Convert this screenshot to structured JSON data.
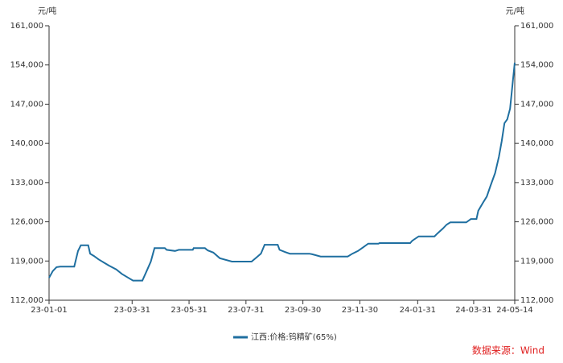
{
  "chart_data": {
    "type": "line",
    "y_unit": "元/吨",
    "y2_unit": "元/吨",
    "x": [
      "23-01-01",
      "23-01-05",
      "23-01-09",
      "23-01-13",
      "23-01-28",
      "23-02-01",
      "23-02-04",
      "23-02-12",
      "23-02-14",
      "23-02-18",
      "23-02-23",
      "23-03-06",
      "23-03-14",
      "23-03-20",
      "23-03-27",
      "23-04-01",
      "23-04-11",
      "23-04-15",
      "23-04-20",
      "23-04-24",
      "23-05-05",
      "23-05-07",
      "23-05-16",
      "23-05-20",
      "23-06-04",
      "23-06-05",
      "23-06-17",
      "23-06-20",
      "23-06-26",
      "23-07-03",
      "23-07-16",
      "23-08-06",
      "23-08-11",
      "23-08-16",
      "23-08-20",
      "23-09-03",
      "23-09-05",
      "23-09-11",
      "23-09-16",
      "23-10-07",
      "23-10-10",
      "23-10-19",
      "23-11-17",
      "23-11-22",
      "23-11-28",
      "23-12-04",
      "23-12-09",
      "23-12-20",
      "23-12-21",
      "24-01-23",
      "24-01-25",
      "24-02-01",
      "24-02-18",
      "24-02-21",
      "24-02-27",
      "24-03-02",
      "24-03-06",
      "24-03-23",
      "24-03-28",
      "24-04-03",
      "24-04-05",
      "24-04-10",
      "24-04-14",
      "24-04-18",
      "24-04-23",
      "24-04-27",
      "24-04-30",
      "24-05-03",
      "24-05-06",
      "24-05-09",
      "24-05-12",
      "24-05-14"
    ],
    "series": [
      {
        "name": "江西:价格:钨精矿(65%)",
        "color": "#1f6fa0",
        "values": [
          116000,
          117200,
          117900,
          118000,
          118000,
          120800,
          121800,
          121800,
          120300,
          119900,
          119300,
          118200,
          117500,
          116700,
          116000,
          115500,
          115500,
          117000,
          118900,
          121300,
          121300,
          121000,
          120800,
          121000,
          121000,
          121300,
          121300,
          120900,
          120500,
          119500,
          118900,
          118900,
          119600,
          120300,
          121900,
          121900,
          121000,
          120600,
          120300,
          120300,
          120200,
          119800,
          119800,
          120300,
          120800,
          121500,
          122100,
          122100,
          122200,
          122200,
          122600,
          123400,
          123400,
          123900,
          124800,
          125500,
          125900,
          125900,
          126500,
          126500,
          128000,
          129400,
          130500,
          132400,
          134700,
          137600,
          140400,
          143600,
          144300,
          146200,
          151200,
          154400
        ]
      }
    ],
    "xlim": [
      "23-01-01",
      "24-05-14"
    ],
    "xticks": [
      "23-01-01",
      "23-03-31",
      "23-05-31",
      "23-07-31",
      "23-09-30",
      "23-11-30",
      "24-01-31",
      "24-03-31",
      "24-05-14"
    ],
    "ylim": [
      112000,
      161000
    ],
    "yticks": [
      {
        "value": 112000,
        "label": "112,000"
      },
      {
        "value": 119000,
        "label": "119,000"
      },
      {
        "value": 126000,
        "label": "126,000"
      },
      {
        "value": 133000,
        "label": "133,000"
      },
      {
        "value": 140000,
        "label": "140,000"
      },
      {
        "value": 147000,
        "label": "147,000"
      },
      {
        "value": 154000,
        "label": "154,000"
      },
      {
        "value": 161000,
        "label": "161,000"
      }
    ],
    "y2lim": [
      112000,
      161000
    ],
    "y2ticks": [
      {
        "value": 112000,
        "label": "112,000"
      },
      {
        "value": 119000,
        "label": "119,000"
      },
      {
        "value": 126000,
        "label": "126,000"
      },
      {
        "value": 133000,
        "label": "133,000"
      },
      {
        "value": 140000,
        "label": "140,000"
      },
      {
        "value": 147000,
        "label": "147,000"
      },
      {
        "value": 154000,
        "label": "154,000"
      },
      {
        "value": 161000,
        "label": "161,000"
      }
    ],
    "source": "数据来源：Wind",
    "source_color": "#e02020"
  }
}
